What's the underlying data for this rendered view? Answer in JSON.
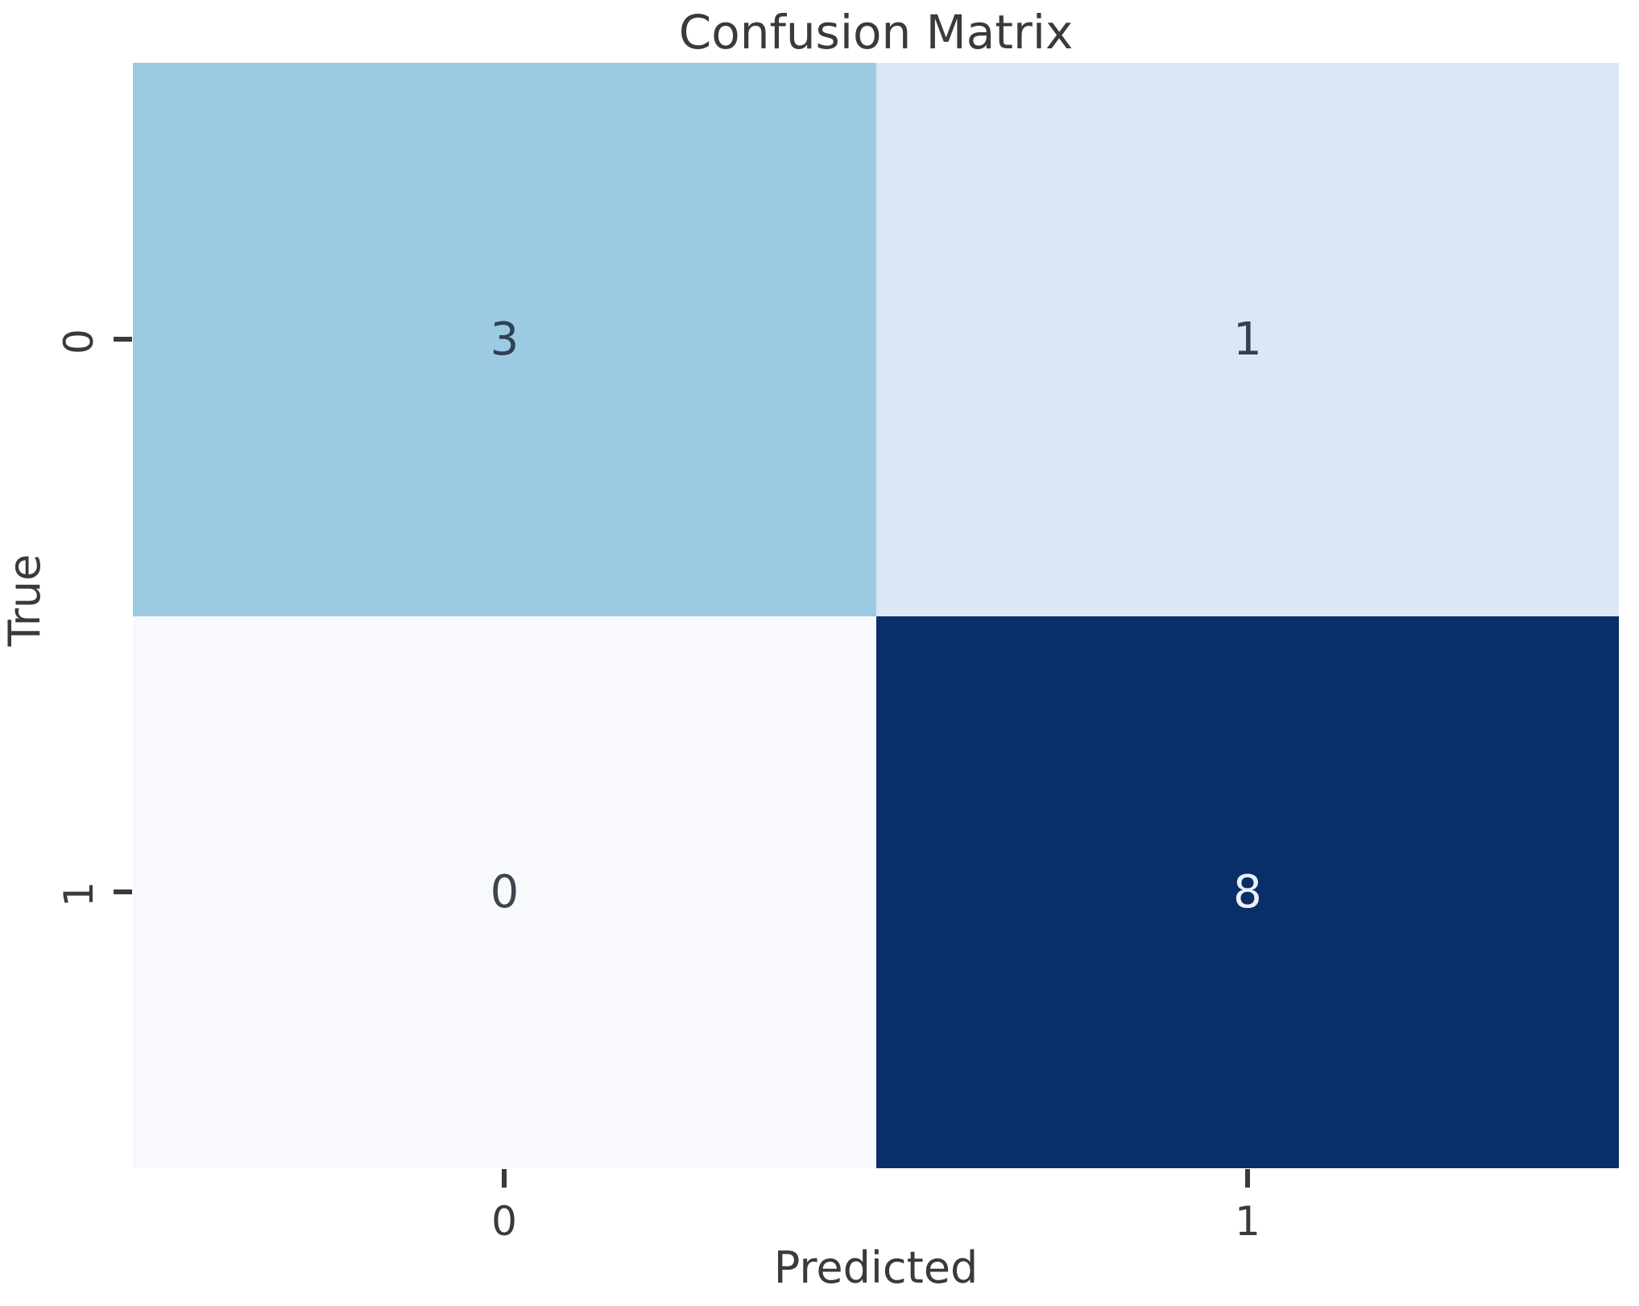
{
  "chart_data": {
    "type": "heatmap",
    "title": "Confusion Matrix",
    "xlabel": "Predicted",
    "ylabel": "True",
    "x_tick_labels": [
      "0",
      "1"
    ],
    "y_tick_labels": [
      "0",
      "1"
    ],
    "matrix": [
      [
        3,
        1
      ],
      [
        0,
        8
      ]
    ],
    "colormap": "Blues",
    "colorbar": false,
    "grid": false,
    "legend_position": "none",
    "axis_text_color": "#3a3a3a",
    "background_color": "#ffffff",
    "cells": [
      {
        "true_label": "0",
        "predicted_label": "0",
        "value": "3",
        "bg": "#9dcae3",
        "fg": "#2e4254"
      },
      {
        "true_label": "0",
        "predicted_label": "1",
        "value": "1",
        "bg": "#dbe7f4",
        "fg": "#2e4254"
      },
      {
        "true_label": "1",
        "predicted_label": "0",
        "value": "0",
        "bg": "#f7f9fd",
        "fg": "#3e454f"
      },
      {
        "true_label": "1",
        "predicted_label": "1",
        "value": "8",
        "bg": "#0a2f68",
        "fg": "#ebf1f8"
      }
    ]
  }
}
